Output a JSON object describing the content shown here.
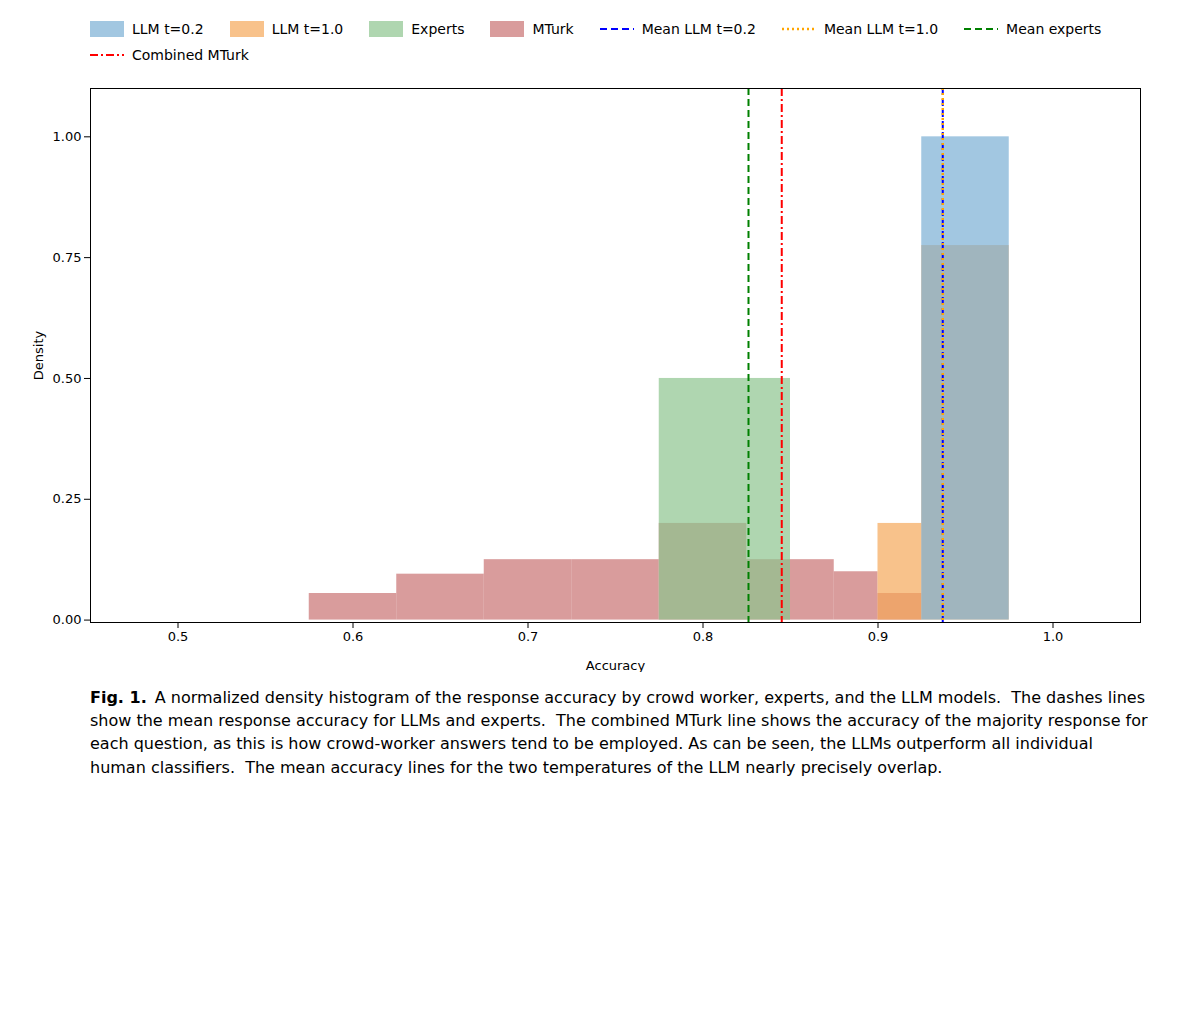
{
  "chart_data": {
    "type": "histogram",
    "xlabel": "Accuracy",
    "ylabel": "Density",
    "xlim": [
      0.45,
      1.05
    ],
    "ylim": [
      -0.005,
      1.1
    ],
    "xticks": [
      0.5,
      0.6,
      0.7,
      0.8,
      0.9,
      {
        "value": 1.0,
        "label": "1.0"
      }
    ],
    "yticks": [
      {
        "value": 0.0,
        "label": "0.00"
      },
      0.25,
      {
        "value": 0.5,
        "label": "0.50"
      },
      0.75,
      {
        "value": 1.0,
        "label": "1.00"
      }
    ],
    "grid": false,
    "legend": "upper left",
    "series": [
      {
        "name": "LLM t=0.2",
        "color": "#7bafd4",
        "bins": [
          0.925,
          0.975
        ],
        "values": [
          1.0
        ]
      },
      {
        "name": "LLM t=1.0",
        "color": "#f5a85a",
        "bins": [
          0.9,
          0.925,
          0.975
        ],
        "values": [
          0.2,
          0.775
        ]
      },
      {
        "name": "Experts",
        "color": "#8dc48e",
        "bins": [
          0.775,
          0.85
        ],
        "values": [
          0.5
        ]
      },
      {
        "name": "MTurk",
        "color": "#c97272",
        "bins": [
          0.575,
          0.625,
          0.675,
          0.725,
          0.775,
          0.825,
          0.875,
          0.9,
          0.925
        ],
        "values": [
          0.055,
          0.095,
          0.125,
          0.125,
          0.2,
          0.125,
          0.1,
          0.055
        ]
      }
    ],
    "lines": [
      {
        "name": "Mean LLM t=0.2",
        "x": 0.937,
        "color": "blue",
        "line_style": "dashed"
      },
      {
        "name": "Mean LLM t=1.0",
        "x": 0.937,
        "color": "orange",
        "line_style": "dotted"
      },
      {
        "name": "Mean experts",
        "x": 0.826,
        "color": "green",
        "line_style": "dashed"
      },
      {
        "name": "Combined MTurk",
        "x": 0.845,
        "color": "red",
        "line_style": "dashdot"
      }
    ],
    "caption_label": "Fig. 1.",
    "caption": "A normalized density histogram of the response accuracy by crowd worker, experts, and the LLM models.  The dashes lines show the mean response accuracy for LLMs and experts.  The combined MTurk line shows the accuracy of the majority response for each question, as this is how crowd-worker answers tend to be employed. As can be seen, the LLMs outperform all individual human classifiers.  The mean accuracy lines for the two temperatures of the LLM nearly precisely overlap."
  }
}
